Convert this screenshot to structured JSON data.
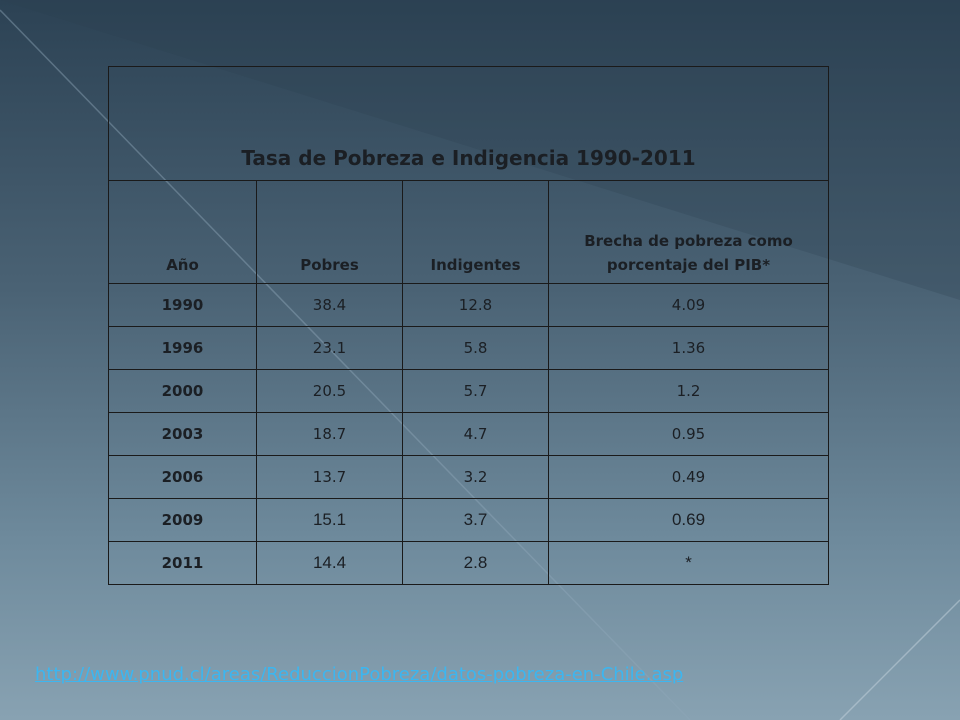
{
  "table": {
    "title": "Tasa de Pobreza e Indigencia 1990-2011",
    "header": [
      "Año",
      "Pobres",
      "Indigentes",
      "Brecha de pobreza como porcentaje del PIB*"
    ],
    "rows": [
      [
        "1990",
        "38.4",
        "12.8",
        "4.09"
      ],
      [
        "1996",
        "23.1",
        "5.8",
        "1.36"
      ],
      [
        "2000",
        "20.5",
        "5.7",
        "1.2"
      ],
      [
        "2003",
        "18.7",
        "4.7",
        "0.95"
      ],
      [
        "2006",
        "13.7",
        "3.2",
        "0.49"
      ],
      [
        "2009",
        "15.1",
        "3.7",
        "0.69"
      ],
      [
        "2011",
        "14.4",
        "2.8",
        "*"
      ]
    ]
  },
  "source": {
    "link": "http://www.pnud.cl/areas/ReduccionPobreza/datos-pobreza-en-Chile.asp"
  }
}
